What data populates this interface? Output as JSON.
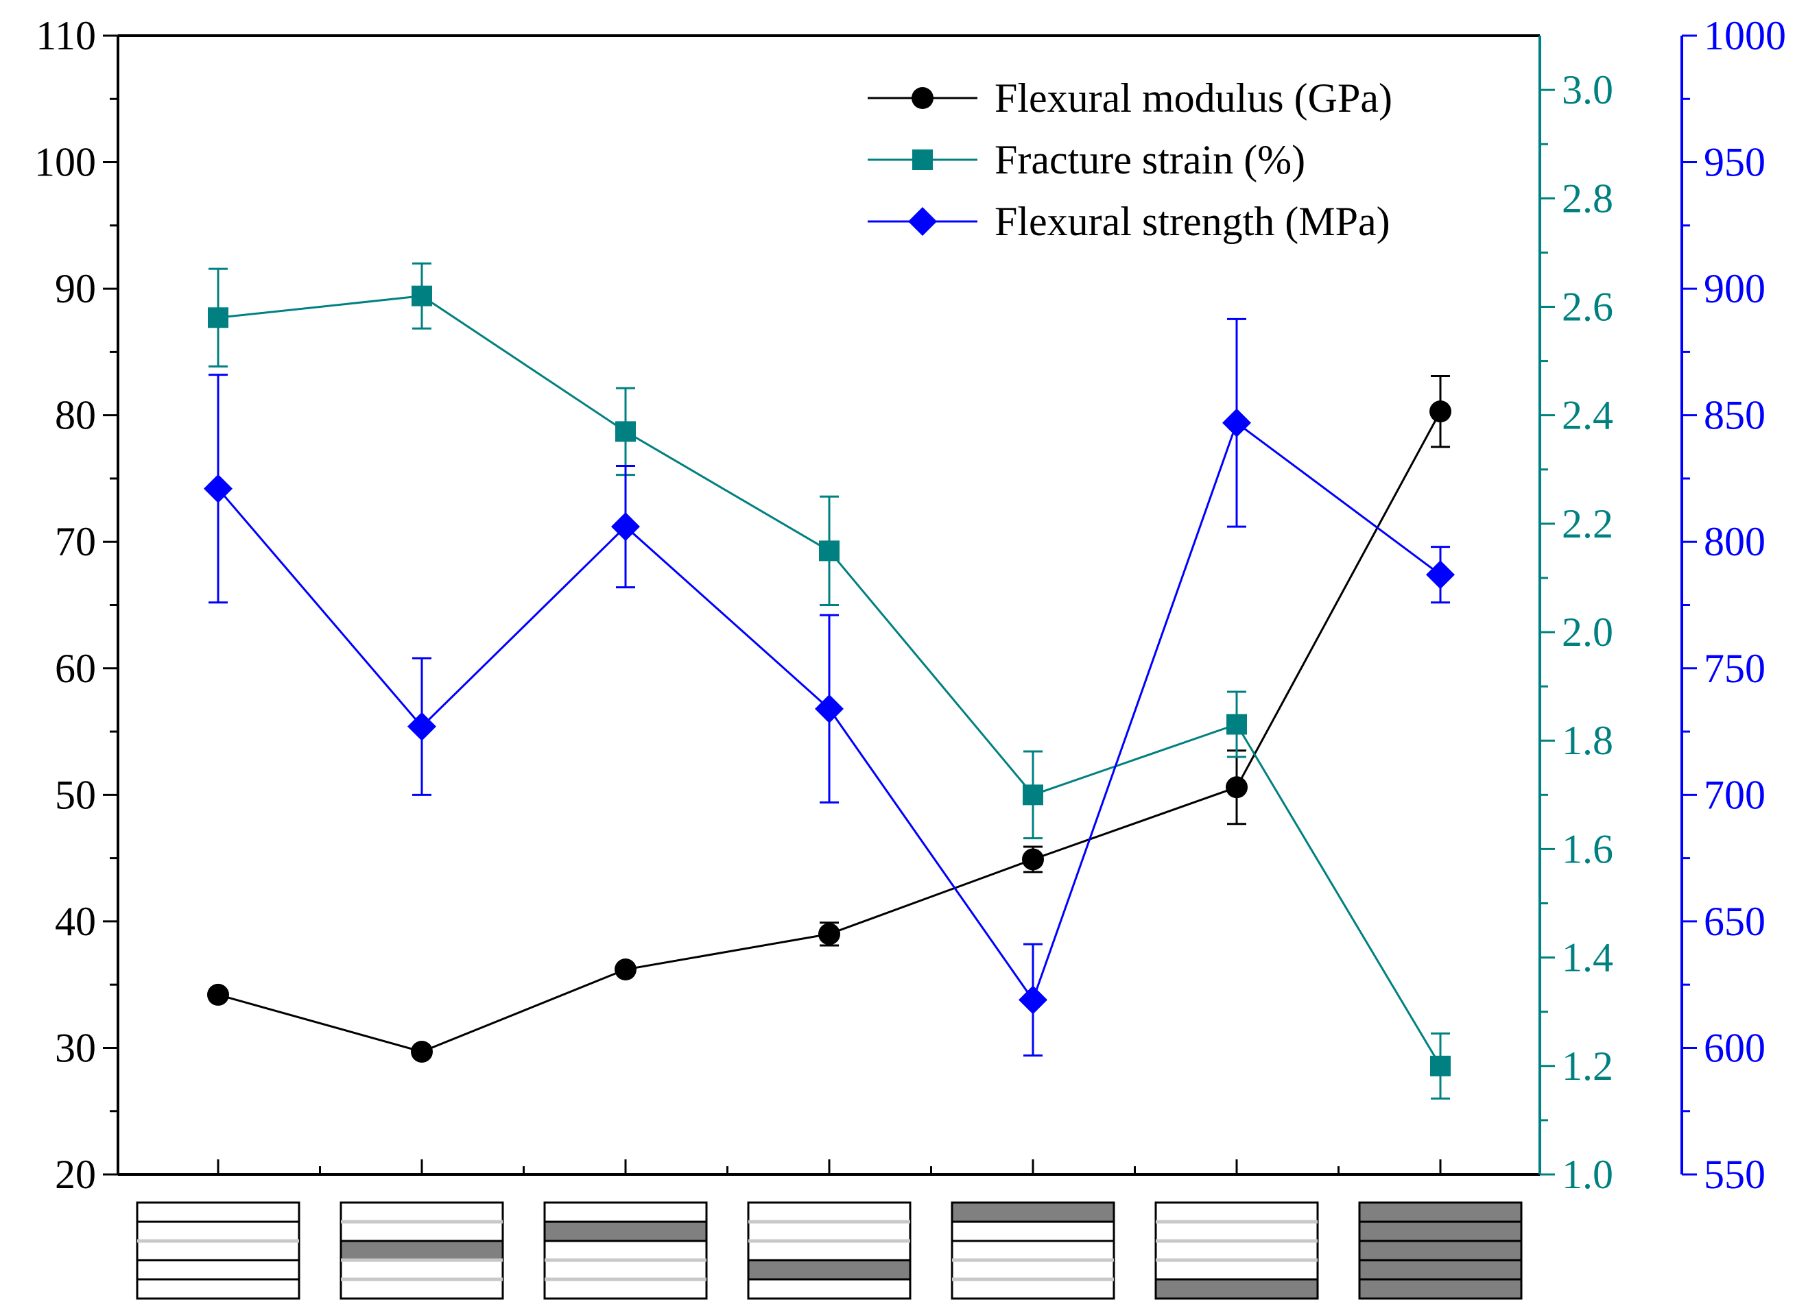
{
  "colors": {
    "modulus": "#000000",
    "strain": "#008080",
    "strength": "#0000ff",
    "layer_fill": "#808080",
    "layer_line": "#000000",
    "light_line": "#c8c8c8"
  },
  "chart_data": {
    "type": "line",
    "x_positions": [
      1,
      2,
      3,
      4,
      5,
      6,
      7
    ],
    "axes": {
      "left": {
        "ylim": [
          20,
          110
        ],
        "ticks": [
          "20",
          "30",
          "40",
          "50",
          "60",
          "70",
          "80",
          "90",
          "100",
          "110"
        ],
        "color": "#000000"
      },
      "right1": {
        "ylim": [
          1.0,
          3.1
        ],
        "ticks": [
          "1.0",
          "1.2",
          "1.4",
          "1.6",
          "1.8",
          "2.0",
          "2.2",
          "2.4",
          "2.6",
          "2.8",
          "3.0"
        ],
        "color": "#008080"
      },
      "right2": {
        "ylim": [
          550,
          1000
        ],
        "ticks": [
          "550",
          "600",
          "650",
          "700",
          "750",
          "800",
          "850",
          "900",
          "950",
          "1000"
        ],
        "color": "#0000ff"
      }
    },
    "series": [
      {
        "name": "Flexural modulus (GPa)",
        "axis": "left",
        "marker": "circle",
        "color": "#000000",
        "values": [
          34.2,
          29.7,
          36.2,
          39.0,
          44.9,
          50.6,
          80.3
        ],
        "errors": [
          0,
          0,
          0,
          0.9,
          1.0,
          2.9,
          2.8
        ]
      },
      {
        "name": "Fracture strain (%)",
        "axis": "right1",
        "marker": "square",
        "color": "#008080",
        "values": [
          2.58,
          2.62,
          2.37,
          2.15,
          1.7,
          1.83,
          1.2
        ],
        "errors": [
          0.09,
          0.06,
          0.08,
          0.1,
          0.08,
          0.06,
          0.06
        ]
      },
      {
        "name": "Flexural strength (MPa)",
        "axis": "right2",
        "marker": "diamond",
        "color": "#0000ff",
        "values": [
          821,
          727,
          806,
          734,
          619,
          847,
          787
        ],
        "errors": [
          45,
          27,
          24,
          37,
          22,
          41,
          11
        ]
      }
    ],
    "layups": [
      {
        "dark": [],
        "light_rows": [
          2
        ]
      },
      {
        "dark": [
          2
        ],
        "light_rows": [
          0,
          1,
          3,
          4
        ]
      },
      {
        "dark": [
          1
        ],
        "light_rows": [
          0,
          3,
          4
        ]
      },
      {
        "dark": [
          3
        ],
        "light_rows": [
          0,
          1,
          2
        ]
      },
      {
        "dark": [
          0
        ],
        "light_rows": [
          3,
          4
        ]
      },
      {
        "dark": [
          4
        ],
        "light_rows": [
          0,
          1,
          2,
          3
        ]
      },
      {
        "dark": [
          0,
          1,
          2,
          3,
          4
        ],
        "light_rows": []
      }
    ],
    "legend_position": "top-right",
    "grid": false
  }
}
